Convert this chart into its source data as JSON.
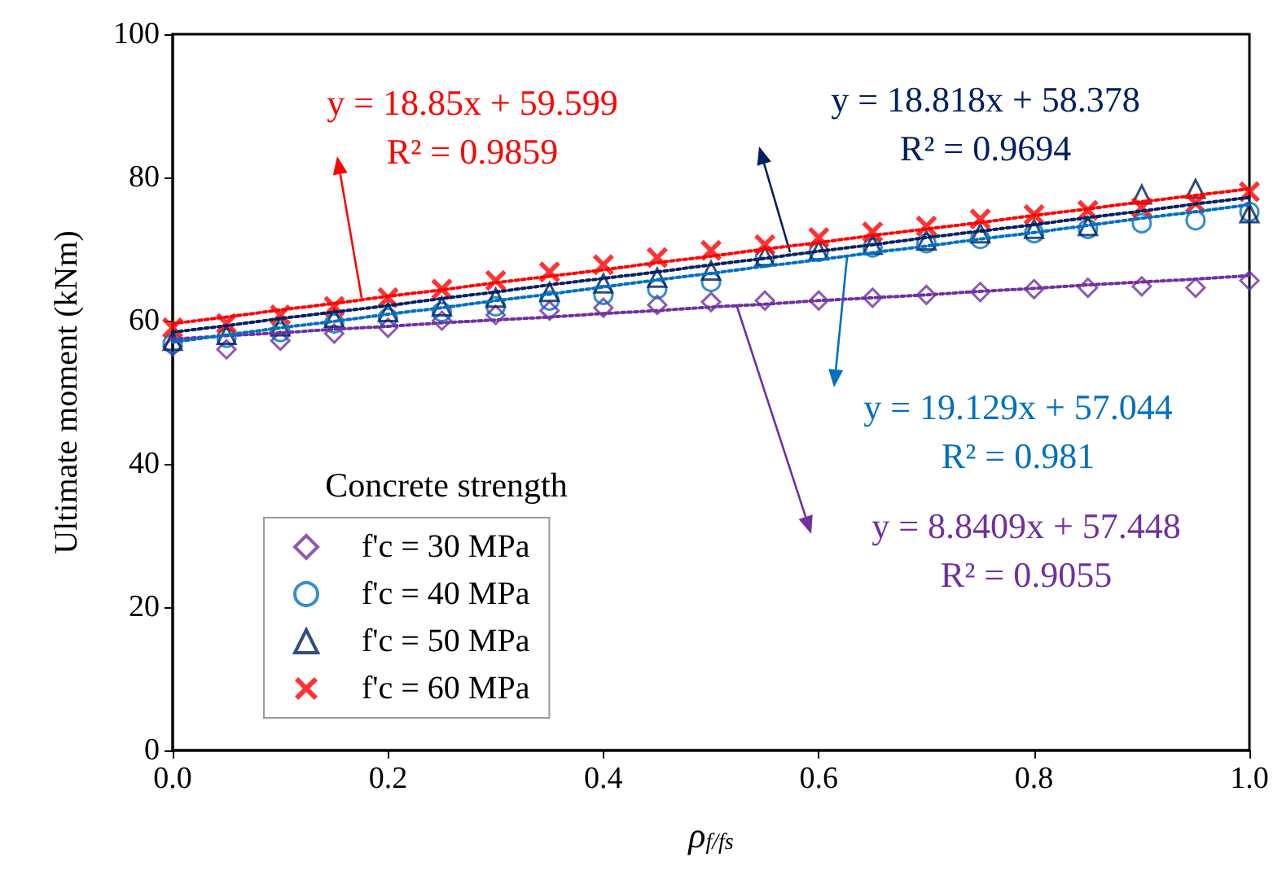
{
  "chart_data": {
    "type": "scatter",
    "xlabel": "ρ$_{f/fs}$",
    "ylabel": "Ultimate moment (kNm)",
    "legend_title": "Concrete strength",
    "xlim": [
      0,
      1
    ],
    "xticks": [
      {
        "value": 0,
        "label": "0.0"
      },
      {
        "value": 0.2,
        "label": "0.2"
      },
      {
        "value": 0.4,
        "label": "0.4"
      },
      {
        "value": 0.6,
        "label": "0.6"
      },
      {
        "value": 0.8,
        "label": "0.8"
      },
      {
        "value": 1,
        "label": "1.0"
      }
    ],
    "ylim": [
      0,
      100
    ],
    "yticks": [
      0,
      20,
      40,
      60,
      80,
      100
    ],
    "grid": false,
    "legend": "bottom left",
    "x": [
      0,
      0.05,
      0.1,
      0.15,
      0.2,
      0.25,
      0.3,
      0.35,
      0.4,
      0.45,
      0.5,
      0.55,
      0.6,
      0.65,
      0.7,
      0.75,
      0.8,
      0.85,
      0.9,
      0.95,
      1.0
    ],
    "series": [
      {
        "name": "f'c = 30 MPa",
        "color": "#7030a0",
        "marker": "diamond",
        "values": [
          56.4,
          56.0,
          57.2,
          58.2,
          59.0,
          60.0,
          60.8,
          61.4,
          61.8,
          62.2,
          62.6,
          62.8,
          62.8,
          63.2,
          63.6,
          64.0,
          64.4,
          64.6,
          64.8,
          64.6,
          65.6
        ]
      },
      {
        "name": "f'c = 40 MPa",
        "color": "#0070c0",
        "marker": "circle",
        "values": [
          56.8,
          57.6,
          58.4,
          59.6,
          60.4,
          61.2,
          62.0,
          62.8,
          63.6,
          64.4,
          65.4,
          68.8,
          69.6,
          70.2,
          70.8,
          71.4,
          72.2,
          72.8,
          73.6,
          74.0,
          75.2
        ]
      },
      {
        "name": "f'c = 50 MPa",
        "color": "#002060",
        "marker": "triangle",
        "values": [
          57.2,
          58.0,
          59.2,
          60.4,
          61.2,
          62.0,
          63.2,
          64.0,
          65.2,
          66.0,
          67.0,
          69.0,
          69.8,
          70.6,
          71.2,
          72.2,
          72.8,
          73.2,
          77.6,
          78.4,
          75.0
        ]
      },
      {
        "name": "f'c = 60 MPa",
        "color": "#ff0000",
        "marker": "cross",
        "values": [
          59.0,
          59.6,
          60.8,
          62.0,
          63.2,
          64.4,
          65.6,
          66.8,
          67.8,
          68.8,
          69.8,
          70.6,
          71.6,
          72.4,
          73.2,
          74.2,
          74.8,
          75.4,
          75.8,
          76.4,
          78.0
        ]
      },
      {
        "type": "line",
        "color": "#7030a0",
        "marker": "none",
        "line_style": "dotted",
        "values": [
          57.4,
          57.9,
          58.3,
          58.8,
          59.2,
          59.7,
          60.1,
          60.5,
          61.0,
          61.4,
          61.9,
          62.3,
          62.8,
          63.2,
          63.6,
          64.1,
          64.5,
          65.0,
          65.4,
          65.8,
          66.3
        ]
      },
      {
        "type": "line",
        "color": "#0070c0",
        "marker": "none",
        "line_style": "dotted",
        "values": [
          57.0,
          58.0,
          59.0,
          59.9,
          60.9,
          61.8,
          62.8,
          63.7,
          64.7,
          65.7,
          66.6,
          67.6,
          68.5,
          69.5,
          70.4,
          71.4,
          72.3,
          73.3,
          74.3,
          75.2,
          76.2
        ]
      },
      {
        "type": "line",
        "color": "#002060",
        "marker": "none",
        "line_style": "dotted",
        "values": [
          58.4,
          59.3,
          60.3,
          61.2,
          62.1,
          63.1,
          64.0,
          65.0,
          65.9,
          66.8,
          67.8,
          68.7,
          69.7,
          70.6,
          71.6,
          72.5,
          73.4,
          74.4,
          75.3,
          76.3,
          77.2
        ]
      },
      {
        "type": "line",
        "color": "#ff0000",
        "marker": "none",
        "line_style": "dotted",
        "values": [
          59.6,
          60.5,
          61.5,
          62.4,
          63.4,
          64.3,
          65.3,
          66.2,
          67.1,
          68.1,
          69.0,
          70.0,
          70.9,
          71.9,
          72.8,
          73.7,
          74.7,
          75.6,
          76.6,
          77.5,
          78.4
        ]
      }
    ],
    "annotations": [
      "y = 18.85x + 59.599\nR² = 0.9859",
      "y = 18.818x + 58.378\nR² = 0.9694",
      "y = 19.129x + 57.044\nR² = 0.981",
      "y = 8.8409x + 57.448\nR² = 0.9055"
    ]
  }
}
